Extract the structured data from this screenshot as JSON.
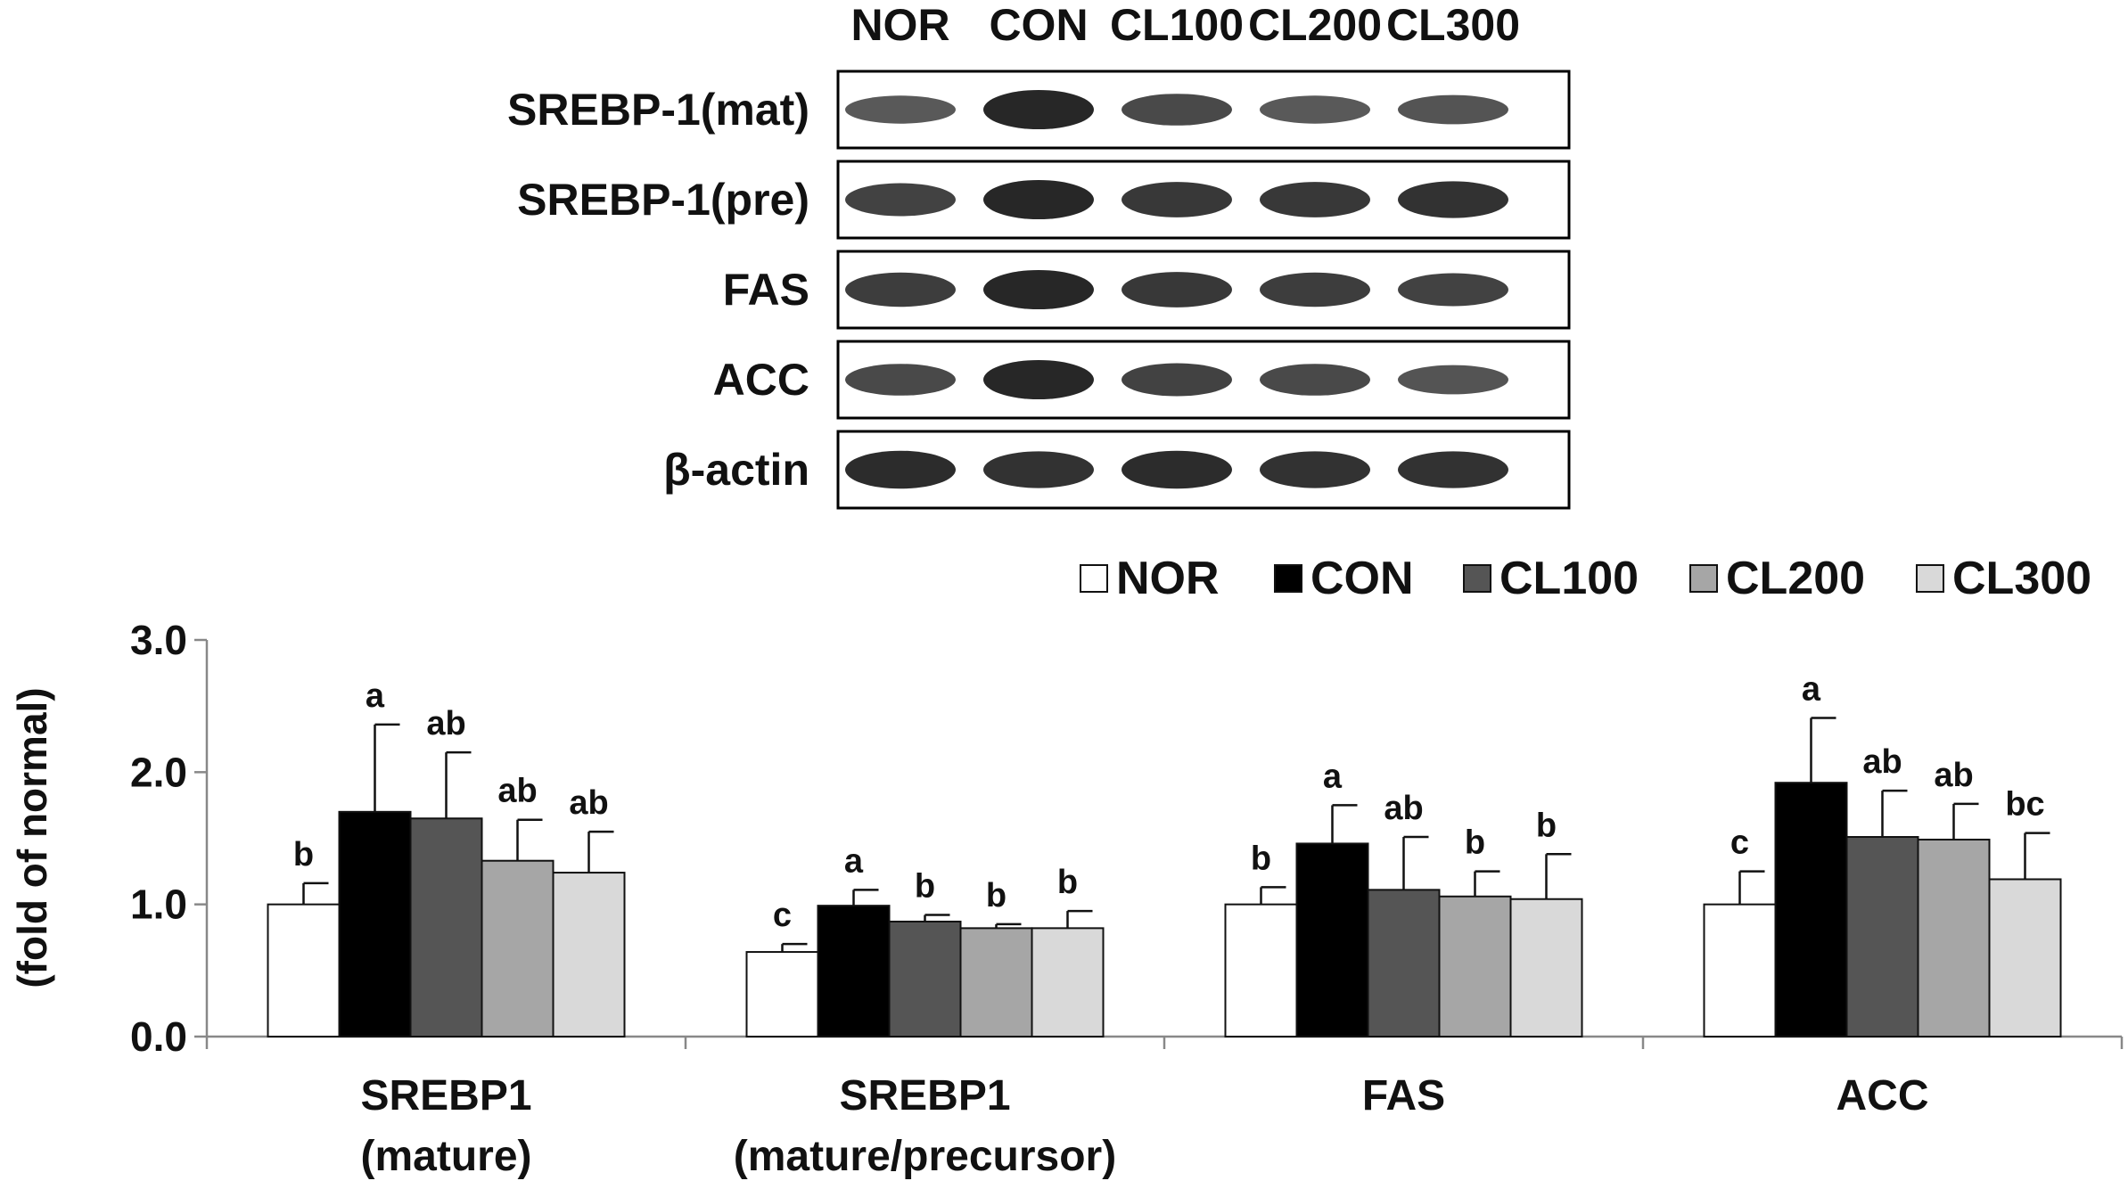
{
  "blot": {
    "lanes": [
      "NOR",
      "CON",
      "CL100",
      "CL200",
      "CL300"
    ],
    "rows": [
      {
        "label": "SREBP-1(mat)",
        "intensity": [
          0.55,
          1.0,
          0.7,
          0.55,
          0.6
        ]
      },
      {
        "label": "SREBP-1(pre)",
        "intensity": [
          0.75,
          1.0,
          0.85,
          0.85,
          0.9
        ]
      },
      {
        "label": "FAS",
        "intensity": [
          0.8,
          1.0,
          0.85,
          0.8,
          0.75
        ]
      },
      {
        "label": "ACC",
        "intensity": [
          0.7,
          1.0,
          0.75,
          0.7,
          0.6
        ]
      },
      {
        "label": "β-actin",
        "intensity": [
          0.95,
          0.9,
          0.95,
          0.9,
          0.9
        ]
      }
    ]
  },
  "chart_data": {
    "type": "bar",
    "ylabel": "(fold of normal)",
    "ylim": [
      0,
      3
    ],
    "yticks": [
      "0.0",
      "1.0",
      "2.0",
      "3.0"
    ],
    "legend_position": "top-right",
    "categories": [
      [
        "SREBP1",
        "(mature)"
      ],
      [
        "SREBP1",
        "(mature/precursor)"
      ],
      [
        "FAS"
      ],
      [
        "ACC"
      ]
    ],
    "series": [
      {
        "name": "NOR",
        "color": "#ffffff",
        "values": [
          1.0,
          0.64,
          1.0,
          1.0
        ],
        "errors": [
          0.16,
          0.06,
          0.13,
          0.25
        ],
        "letters": [
          "b",
          "c",
          "b",
          "c"
        ]
      },
      {
        "name": "CON",
        "color": "#000000",
        "values": [
          1.7,
          0.99,
          1.46,
          1.92
        ],
        "errors": [
          0.66,
          0.12,
          0.29,
          0.49
        ],
        "letters": [
          "a",
          "a",
          "a",
          "a"
        ]
      },
      {
        "name": "CL100",
        "color": "#555555",
        "values": [
          1.65,
          0.87,
          1.11,
          1.51
        ],
        "errors": [
          0.5,
          0.05,
          0.4,
          0.35
        ],
        "letters": [
          "ab",
          "b",
          "ab",
          "ab"
        ]
      },
      {
        "name": "CL200",
        "color": "#a6a6a6",
        "values": [
          1.33,
          0.82,
          1.06,
          1.49
        ],
        "errors": [
          0.31,
          0.03,
          0.19,
          0.27
        ],
        "letters": [
          "ab",
          "b",
          "b",
          "ab"
        ]
      },
      {
        "name": "CL300",
        "color": "#d9d9d9",
        "values": [
          1.24,
          0.82,
          1.04,
          1.19
        ],
        "errors": [
          0.31,
          0.13,
          0.34,
          0.35
        ],
        "letters": [
          "ab",
          "b",
          "b",
          "bc"
        ]
      }
    ]
  }
}
